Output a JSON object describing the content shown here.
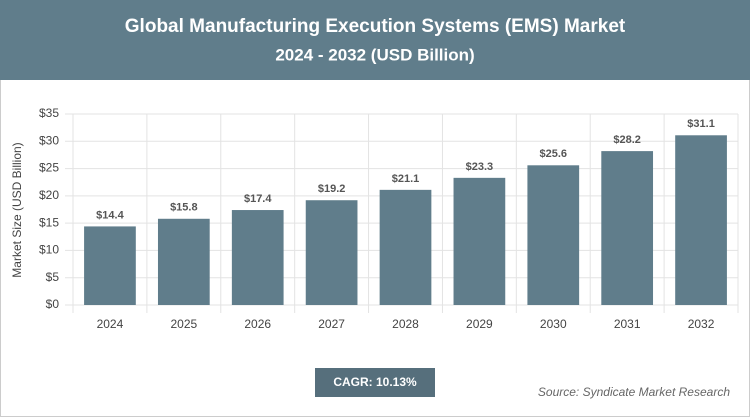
{
  "chart_data": {
    "type": "bar",
    "title": "Global Manufacturing Execution Systems (EMS) Market",
    "subtitle": "2024 - 2032 (USD Billion)",
    "y_axis_label": "Market Size (USD Billion)",
    "categories": [
      "2024",
      "2025",
      "2026",
      "2027",
      "2028",
      "2029",
      "2030",
      "2031",
      "2032"
    ],
    "values": [
      14.4,
      15.8,
      17.4,
      19.2,
      21.1,
      23.3,
      25.6,
      28.2,
      31.1
    ],
    "value_labels": [
      "$14.4",
      "$15.8",
      "$17.4",
      "$19.2",
      "$21.1",
      "$23.3",
      "$25.6",
      "$28.2",
      "$31.1"
    ],
    "color": "#607d8b",
    "ylim": [
      0,
      35
    ],
    "yticks": [
      {
        "value": 0,
        "label": "$0"
      },
      {
        "value": 5,
        "label": "$5"
      },
      {
        "value": 10,
        "label": "$10"
      },
      {
        "value": 15,
        "label": "$15"
      },
      {
        "value": 20,
        "label": "$20"
      },
      {
        "value": 25,
        "label": "$25"
      },
      {
        "value": 30,
        "label": "$30"
      },
      {
        "value": 35,
        "label": "$35"
      }
    ],
    "grid": true,
    "annotations": [
      "CAGR: 10.13%",
      "Source: Syndicate Market Research"
    ]
  }
}
